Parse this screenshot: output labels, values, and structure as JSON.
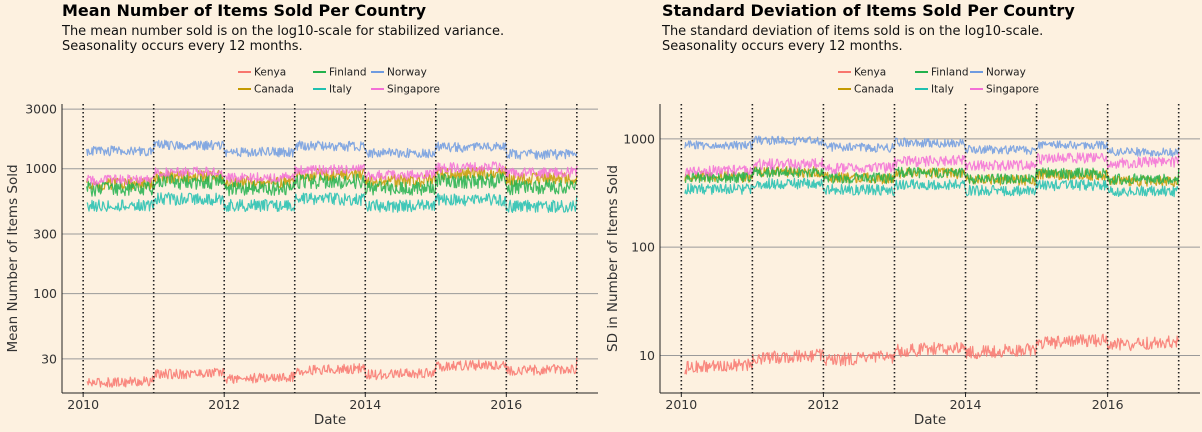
{
  "colors": {
    "Kenya": "#f8766d",
    "Canada": "#c49a00",
    "Finland": "#22b14c",
    "Italy": "#20c0b0",
    "Norway": "#6f9be0",
    "Singapore": "#f36fd6",
    "background": "#fdf1e0",
    "gridline": "#9a9a9a",
    "vline": "#222222"
  },
  "chart_data": [
    {
      "type": "line",
      "title": "Mean Number of Items Sold Per Country",
      "subtitle_lines": [
        "The mean number sold is on the log10-scale for stabilized variance.",
        "Seasonality occurs every 12 months."
      ],
      "xlabel": "Date",
      "ylabel": "Mean Number of Items Sold",
      "y_scale": "log10",
      "ylim": [
        16,
        3300
      ],
      "xlim": [
        2009.7,
        2017.3
      ],
      "x_ticks": [
        2010,
        2012,
        2014,
        2016
      ],
      "x_tick_labels": [
        "2010",
        "2012",
        "2014",
        "2016"
      ],
      "y_ticks": [
        30,
        100,
        300,
        1000,
        3000
      ],
      "y_tick_labels": [
        "30",
        "100",
        "300",
        "1000",
        "3000"
      ],
      "vlines": [
        2010,
        2011,
        2012,
        2013,
        2014,
        2015,
        2016,
        2017
      ],
      "legend_position": "top",
      "legend_rows": [
        [
          "Kenya",
          "Finland",
          "Norway"
        ],
        [
          "Canada",
          "Italy",
          "Singapore"
        ]
      ],
      "series": [
        {
          "name": "Kenya",
          "start": 20,
          "end": 26,
          "noise": 0.04
        },
        {
          "name": "Canada",
          "start": 780,
          "end": 870,
          "noise": 0.05
        },
        {
          "name": "Finland",
          "start": 720,
          "end": 740,
          "noise": 0.06
        },
        {
          "name": "Italy",
          "start": 530,
          "end": 520,
          "noise": 0.05
        },
        {
          "name": "Norway",
          "start": 1450,
          "end": 1350,
          "noise": 0.04
        },
        {
          "name": "Singapore",
          "start": 840,
          "end": 980,
          "noise": 0.04
        }
      ]
    },
    {
      "type": "line",
      "title": "Standard Deviation of Items Sold Per Country",
      "subtitle_lines": [
        "The standard deviation of items sold is on the log10-scale.",
        "Seasonality occurs every 12 months."
      ],
      "xlabel": "Date",
      "ylabel": "SD in Number of Items Sold",
      "y_scale": "log10",
      "ylim": [
        4.5,
        2100
      ],
      "xlim": [
        2009.7,
        2017.3
      ],
      "x_ticks": [
        2010,
        2012,
        2014,
        2016
      ],
      "x_tick_labels": [
        "2010",
        "2012",
        "2014",
        "2016"
      ],
      "y_ticks": [
        10,
        100,
        1000
      ],
      "y_tick_labels": [
        "10",
        "100",
        "1000"
      ],
      "vlines": [
        2010,
        2011,
        2012,
        2013,
        2014,
        2015,
        2016,
        2017
      ],
      "legend_position": "top",
      "legend_rows": [
        [
          "Kenya",
          "Finland",
          "Norway"
        ],
        [
          "Canada",
          "Italy",
          "Singapore"
        ]
      ],
      "series": [
        {
          "name": "Kenya",
          "start": 8,
          "end": 14,
          "noise": 0.06
        },
        {
          "name": "Canada",
          "start": 470,
          "end": 420,
          "noise": 0.05
        },
        {
          "name": "Finland",
          "start": 460,
          "end": 440,
          "noise": 0.05
        },
        {
          "name": "Italy",
          "start": 360,
          "end": 340,
          "noise": 0.05
        },
        {
          "name": "Norway",
          "start": 920,
          "end": 780,
          "noise": 0.04
        },
        {
          "name": "Singapore",
          "start": 520,
          "end": 640,
          "noise": 0.05
        }
      ]
    }
  ]
}
